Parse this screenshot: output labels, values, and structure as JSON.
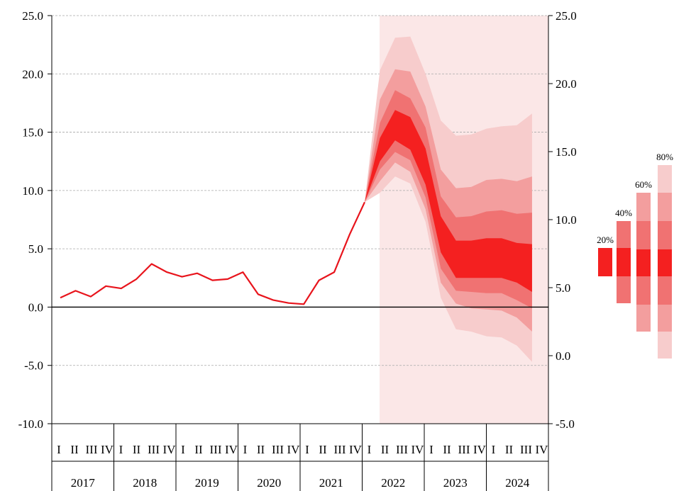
{
  "chart_data": {
    "type": "area",
    "title": "",
    "xlabel": "",
    "ylabel": "",
    "left_axis": {
      "ylim": [
        -10,
        25
      ],
      "ticks": [
        "-10.0",
        "-5.0",
        "0.0",
        "5.0",
        "10.0",
        "15.0",
        "20.0",
        "25.0"
      ]
    },
    "right_axis": {
      "ylim": [
        -5,
        25
      ],
      "ticks": [
        "-5.0",
        "0.0",
        "5.0",
        "10.0",
        "15.0",
        "20.0",
        "25.0"
      ]
    },
    "grid": true,
    "years": [
      "2017",
      "2018",
      "2019",
      "2020",
      "2021",
      "2022",
      "2023",
      "2024"
    ],
    "quarter_labels": [
      "I",
      "II",
      "III",
      "IV"
    ],
    "x": [
      "2017Q1",
      "2017Q2",
      "2017Q3",
      "2017Q4",
      "2018Q1",
      "2018Q2",
      "2018Q3",
      "2018Q4",
      "2019Q1",
      "2019Q2",
      "2019Q3",
      "2019Q4",
      "2020Q1",
      "2020Q2",
      "2020Q3",
      "2020Q4",
      "2021Q1",
      "2021Q2",
      "2021Q3",
      "2021Q4",
      "2022Q1",
      "2022Q2",
      "2022Q3",
      "2022Q4",
      "2023Q1",
      "2023Q2",
      "2023Q3",
      "2023Q4",
      "2024Q1",
      "2024Q2",
      "2024Q3",
      "2024Q4"
    ],
    "series": [
      {
        "values": [
          0.8,
          1.4,
          0.9,
          1.8,
          1.6,
          2.4,
          3.7,
          3.0,
          2.6,
          2.9,
          2.3,
          2.4,
          3.0,
          1.1,
          0.6,
          0.35,
          0.25,
          2.3,
          3.0,
          6.2,
          9.0,
          null,
          null,
          null,
          null,
          null,
          null,
          null,
          null,
          null,
          null,
          null
        ]
      }
    ],
    "fan": {
      "start_index": 20,
      "central": [
        9.0,
        13.8,
        15.6,
        15.0,
        12.4,
        6.8,
        4.2,
        4.2,
        4.3,
        4.2,
        3.8,
        3.4
      ],
      "band_20_lower": [
        9.0,
        12.5,
        14.3,
        13.5,
        10.5,
        4.7,
        2.5,
        2.5,
        2.5,
        2.5,
        2.1,
        1.3
      ],
      "band_20_upper": [
        9.0,
        14.5,
        16.9,
        16.3,
        13.6,
        7.8,
        5.7,
        5.7,
        5.9,
        5.9,
        5.5,
        5.4
      ],
      "band_40_lower": [
        9.0,
        11.8,
        13.3,
        12.6,
        9.4,
        3.3,
        1.4,
        1.3,
        1.2,
        1.2,
        0.6,
        -0.1
      ],
      "band_40_upper": [
        9.0,
        15.8,
        18.6,
        17.9,
        15.4,
        9.5,
        7.7,
        7.8,
        8.2,
        8.3,
        8.0,
        8.1
      ],
      "band_60_lower": [
        9.0,
        10.8,
        12.4,
        11.6,
        8.4,
        2.1,
        0.3,
        -0.1,
        -0.2,
        -0.3,
        -0.9,
        -2.1
      ],
      "band_60_upper": [
        9.0,
        17.8,
        20.4,
        20.2,
        17.2,
        11.8,
        10.2,
        10.3,
        10.9,
        11.0,
        10.8,
        11.2
      ],
      "band_80_lower": [
        9.0,
        9.8,
        11.2,
        10.6,
        7.3,
        0.8,
        -1.9,
        -2.1,
        -2.5,
        -2.6,
        -3.3,
        -4.7
      ],
      "band_80_upper": [
        9.0,
        20.3,
        23.1,
        23.2,
        20.0,
        16.0,
        14.7,
        14.8,
        15.3,
        15.5,
        15.6,
        16.6
      ]
    },
    "legend": {
      "placement": "right",
      "items": [
        "20%",
        "40%",
        "60%",
        "80%"
      ]
    },
    "colors": {
      "line": "#e8141c",
      "band_20": "#f42020",
      "band_40": "#f07272",
      "band_60": "#f39e9e",
      "band_80": "#f7cccc",
      "forecast_shade": "#fbe7e7",
      "grid": "#a8a8a8",
      "axis": "#000000"
    }
  }
}
